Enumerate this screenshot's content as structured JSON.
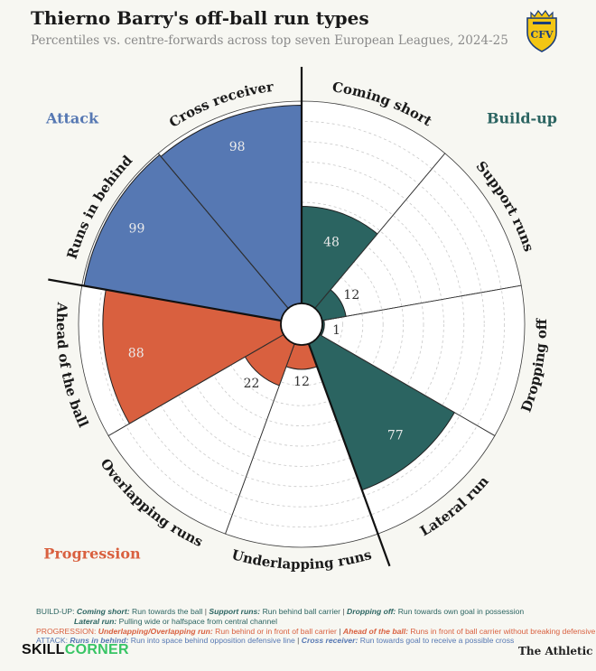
{
  "header": {
    "title": "Thierno Barry's off-ball run types",
    "subtitle": "Percentiles vs. centre-forwards across top seven European Leagues, 2024-25"
  },
  "colors": {
    "build_up": "#2b6461",
    "progression": "#d9603f",
    "attack": "#5678b3",
    "grid": "#c9c9c9",
    "club_yellow": "#f3c614",
    "club_blue": "#1b3d7a"
  },
  "chart_data": {
    "type": "polar-bar",
    "title": "Thierno Barry's off-ball run types",
    "subtitle": "Percentiles vs. centre-forwards across top seven European Leagues, 2024-25",
    "rlim": [
      0,
      100
    ],
    "categories": [
      "Coming short",
      "Support runs",
      "Dropping off",
      "Lateral run",
      "Underlapping runs",
      "Overlapping runs",
      "Ahead of the ball",
      "Runs in behind",
      "Cross receiver"
    ],
    "values": [
      48,
      12,
      1,
      77,
      12,
      22,
      88,
      99,
      98
    ],
    "groups": [
      "Build-up",
      "Build-up",
      "Build-up",
      "Build-up",
      "Progression",
      "Progression",
      "Progression",
      "Attack",
      "Attack"
    ],
    "group_labels": {
      "build_up": "Build-up",
      "progression": "Progression",
      "attack": "Attack"
    }
  },
  "footer": {
    "build_label": "BUILD-UP:",
    "coming_short_term": "Coming short:",
    "coming_short_def": "Run towards the ball",
    "support_term": "Support runs:",
    "support_def": "Run behind ball carrier",
    "dropping_term": "Dropping off:",
    "dropping_def": "Run towards own goal in possession",
    "lateral_term": "Lateral run:",
    "lateral_def": "Pulling wide or halfspace from central channel",
    "prog_label": "PROGRESSION:",
    "underlap_term": "Underlapping/Overlapping run:",
    "underlap_def": "Run behind or in front of ball carrier",
    "ahead_term": "Ahead of the ball:",
    "ahead_def": "Runs in front of ball carrier without breaking defensive line",
    "attack_label": "ATTACK:",
    "behind_term": "Runs in behind:",
    "behind_def": "Run into space behind opposition defensive line",
    "cross_term": "Cross receiver:",
    "cross_def": "Run towards goal to receive a possible cross",
    "sep": "|"
  },
  "brand": {
    "skill": "SKILL",
    "corner": "CORNER",
    "athletic": "The Athletic",
    "club_monogram": "CFV"
  }
}
